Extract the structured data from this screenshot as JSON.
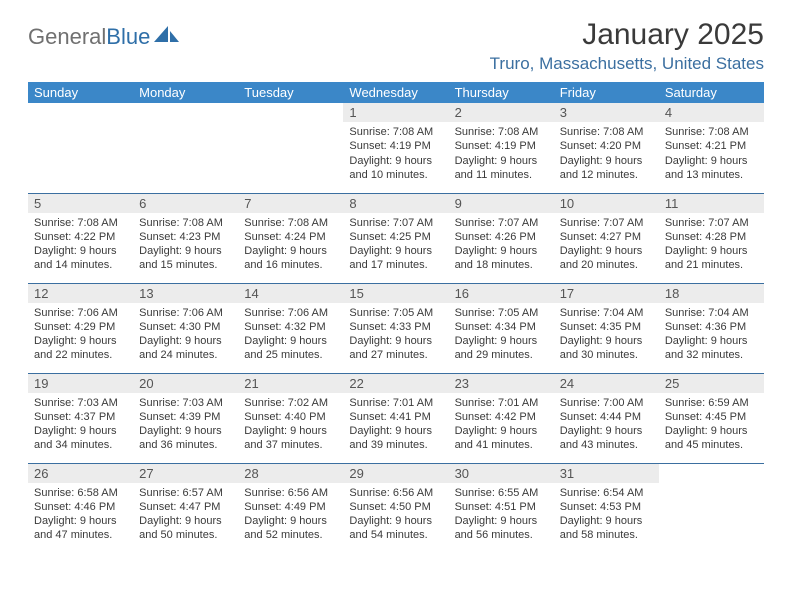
{
  "brand": {
    "general": "General",
    "blue": "Blue"
  },
  "title": "January 2025",
  "location": "Truro, Massachusetts, United States",
  "colors": {
    "header_bg": "#3b87c8",
    "header_text": "#ffffff",
    "rule": "#3b6fa0",
    "daynum_bg": "#ececec",
    "body_text": "#3a3a3a",
    "location_text": "#3b6fa0",
    "logo_gray": "#707070",
    "logo_blue": "#2f6fa8"
  },
  "weekdays": [
    "Sunday",
    "Monday",
    "Tuesday",
    "Wednesday",
    "Thursday",
    "Friday",
    "Saturday"
  ],
  "weeks": [
    [
      {
        "n": "",
        "sr": "",
        "ss": "",
        "dl": ""
      },
      {
        "n": "",
        "sr": "",
        "ss": "",
        "dl": ""
      },
      {
        "n": "",
        "sr": "",
        "ss": "",
        "dl": ""
      },
      {
        "n": "1",
        "sr": "Sunrise: 7:08 AM",
        "ss": "Sunset: 4:19 PM",
        "dl": "Daylight: 9 hours and 10 minutes."
      },
      {
        "n": "2",
        "sr": "Sunrise: 7:08 AM",
        "ss": "Sunset: 4:19 PM",
        "dl": "Daylight: 9 hours and 11 minutes."
      },
      {
        "n": "3",
        "sr": "Sunrise: 7:08 AM",
        "ss": "Sunset: 4:20 PM",
        "dl": "Daylight: 9 hours and 12 minutes."
      },
      {
        "n": "4",
        "sr": "Sunrise: 7:08 AM",
        "ss": "Sunset: 4:21 PM",
        "dl": "Daylight: 9 hours and 13 minutes."
      }
    ],
    [
      {
        "n": "5",
        "sr": "Sunrise: 7:08 AM",
        "ss": "Sunset: 4:22 PM",
        "dl": "Daylight: 9 hours and 14 minutes."
      },
      {
        "n": "6",
        "sr": "Sunrise: 7:08 AM",
        "ss": "Sunset: 4:23 PM",
        "dl": "Daylight: 9 hours and 15 minutes."
      },
      {
        "n": "7",
        "sr": "Sunrise: 7:08 AM",
        "ss": "Sunset: 4:24 PM",
        "dl": "Daylight: 9 hours and 16 minutes."
      },
      {
        "n": "8",
        "sr": "Sunrise: 7:07 AM",
        "ss": "Sunset: 4:25 PM",
        "dl": "Daylight: 9 hours and 17 minutes."
      },
      {
        "n": "9",
        "sr": "Sunrise: 7:07 AM",
        "ss": "Sunset: 4:26 PM",
        "dl": "Daylight: 9 hours and 18 minutes."
      },
      {
        "n": "10",
        "sr": "Sunrise: 7:07 AM",
        "ss": "Sunset: 4:27 PM",
        "dl": "Daylight: 9 hours and 20 minutes."
      },
      {
        "n": "11",
        "sr": "Sunrise: 7:07 AM",
        "ss": "Sunset: 4:28 PM",
        "dl": "Daylight: 9 hours and 21 minutes."
      }
    ],
    [
      {
        "n": "12",
        "sr": "Sunrise: 7:06 AM",
        "ss": "Sunset: 4:29 PM",
        "dl": "Daylight: 9 hours and 22 minutes."
      },
      {
        "n": "13",
        "sr": "Sunrise: 7:06 AM",
        "ss": "Sunset: 4:30 PM",
        "dl": "Daylight: 9 hours and 24 minutes."
      },
      {
        "n": "14",
        "sr": "Sunrise: 7:06 AM",
        "ss": "Sunset: 4:32 PM",
        "dl": "Daylight: 9 hours and 25 minutes."
      },
      {
        "n": "15",
        "sr": "Sunrise: 7:05 AM",
        "ss": "Sunset: 4:33 PM",
        "dl": "Daylight: 9 hours and 27 minutes."
      },
      {
        "n": "16",
        "sr": "Sunrise: 7:05 AM",
        "ss": "Sunset: 4:34 PM",
        "dl": "Daylight: 9 hours and 29 minutes."
      },
      {
        "n": "17",
        "sr": "Sunrise: 7:04 AM",
        "ss": "Sunset: 4:35 PM",
        "dl": "Daylight: 9 hours and 30 minutes."
      },
      {
        "n": "18",
        "sr": "Sunrise: 7:04 AM",
        "ss": "Sunset: 4:36 PM",
        "dl": "Daylight: 9 hours and 32 minutes."
      }
    ],
    [
      {
        "n": "19",
        "sr": "Sunrise: 7:03 AM",
        "ss": "Sunset: 4:37 PM",
        "dl": "Daylight: 9 hours and 34 minutes."
      },
      {
        "n": "20",
        "sr": "Sunrise: 7:03 AM",
        "ss": "Sunset: 4:39 PM",
        "dl": "Daylight: 9 hours and 36 minutes."
      },
      {
        "n": "21",
        "sr": "Sunrise: 7:02 AM",
        "ss": "Sunset: 4:40 PM",
        "dl": "Daylight: 9 hours and 37 minutes."
      },
      {
        "n": "22",
        "sr": "Sunrise: 7:01 AM",
        "ss": "Sunset: 4:41 PM",
        "dl": "Daylight: 9 hours and 39 minutes."
      },
      {
        "n": "23",
        "sr": "Sunrise: 7:01 AM",
        "ss": "Sunset: 4:42 PM",
        "dl": "Daylight: 9 hours and 41 minutes."
      },
      {
        "n": "24",
        "sr": "Sunrise: 7:00 AM",
        "ss": "Sunset: 4:44 PM",
        "dl": "Daylight: 9 hours and 43 minutes."
      },
      {
        "n": "25",
        "sr": "Sunrise: 6:59 AM",
        "ss": "Sunset: 4:45 PM",
        "dl": "Daylight: 9 hours and 45 minutes."
      }
    ],
    [
      {
        "n": "26",
        "sr": "Sunrise: 6:58 AM",
        "ss": "Sunset: 4:46 PM",
        "dl": "Daylight: 9 hours and 47 minutes."
      },
      {
        "n": "27",
        "sr": "Sunrise: 6:57 AM",
        "ss": "Sunset: 4:47 PM",
        "dl": "Daylight: 9 hours and 50 minutes."
      },
      {
        "n": "28",
        "sr": "Sunrise: 6:56 AM",
        "ss": "Sunset: 4:49 PM",
        "dl": "Daylight: 9 hours and 52 minutes."
      },
      {
        "n": "29",
        "sr": "Sunrise: 6:56 AM",
        "ss": "Sunset: 4:50 PM",
        "dl": "Daylight: 9 hours and 54 minutes."
      },
      {
        "n": "30",
        "sr": "Sunrise: 6:55 AM",
        "ss": "Sunset: 4:51 PM",
        "dl": "Daylight: 9 hours and 56 minutes."
      },
      {
        "n": "31",
        "sr": "Sunrise: 6:54 AM",
        "ss": "Sunset: 4:53 PM",
        "dl": "Daylight: 9 hours and 58 minutes."
      },
      {
        "n": "",
        "sr": "",
        "ss": "",
        "dl": ""
      }
    ]
  ]
}
